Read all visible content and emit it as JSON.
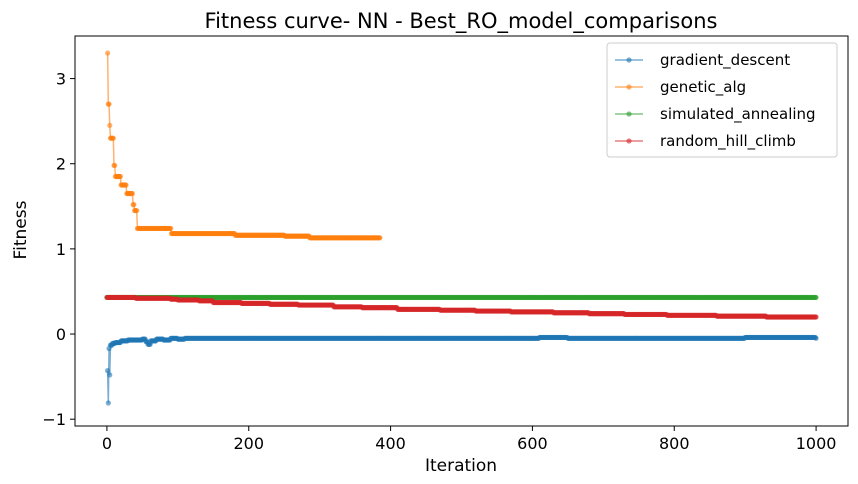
{
  "chart_data": {
    "type": "line",
    "title": "Fitness curve- NN - Best_RO_model_comparisons",
    "xlabel": "Iteration",
    "ylabel": "Fitness",
    "xlim": [
      -45,
      1045
    ],
    "ylim": [
      -1.08,
      3.5
    ],
    "xticks": [
      0,
      200,
      400,
      600,
      800,
      1000
    ],
    "yticks": [
      -1,
      0,
      1,
      2,
      3
    ],
    "xtick_labels": [
      "0",
      "200",
      "400",
      "600",
      "800",
      "1000"
    ],
    "ytick_labels": [
      "−1",
      "0",
      "1",
      "2",
      "3"
    ],
    "grid": false,
    "legend_position": "upper-right",
    "series": [
      {
        "name": "gradient_descent",
        "color": "#1f77b4",
        "points": [
          [
            1,
            -0.43
          ],
          [
            2,
            -0.81
          ],
          [
            3,
            -0.17
          ],
          [
            4,
            -0.48
          ],
          [
            5,
            -0.13
          ],
          [
            8,
            -0.11
          ],
          [
            12,
            -0.1
          ],
          [
            20,
            -0.08
          ],
          [
            30,
            -0.07
          ],
          [
            40,
            -0.07
          ],
          [
            50,
            -0.06
          ],
          [
            55,
            -0.09
          ],
          [
            58,
            -0.12
          ],
          [
            62,
            -0.08
          ],
          [
            70,
            -0.06
          ],
          [
            80,
            -0.07
          ],
          [
            90,
            -0.05
          ],
          [
            100,
            -0.06
          ],
          [
            110,
            -0.05
          ],
          [
            150,
            -0.05
          ],
          [
            300,
            -0.05
          ],
          [
            500,
            -0.05
          ],
          [
            600,
            -0.05
          ],
          [
            610,
            -0.04
          ],
          [
            650,
            -0.05
          ],
          [
            800,
            -0.05
          ],
          [
            900,
            -0.04
          ],
          [
            1000,
            -0.05
          ]
        ]
      },
      {
        "name": "genetic_alg",
        "color": "#ff7f0e",
        "points": [
          [
            1,
            3.3
          ],
          [
            2,
            2.7
          ],
          [
            4,
            2.45
          ],
          [
            5,
            2.3
          ],
          [
            8,
            2.3
          ],
          [
            10,
            1.98
          ],
          [
            12,
            1.85
          ],
          [
            18,
            1.85
          ],
          [
            20,
            1.75
          ],
          [
            25,
            1.75
          ],
          [
            28,
            1.65
          ],
          [
            35,
            1.65
          ],
          [
            37,
            1.52
          ],
          [
            39,
            1.45
          ],
          [
            42,
            1.45
          ],
          [
            43,
            1.24
          ],
          [
            90,
            1.24
          ],
          [
            91,
            1.18
          ],
          [
            180,
            1.18
          ],
          [
            181,
            1.16
          ],
          [
            250,
            1.16
          ],
          [
            251,
            1.15
          ],
          [
            285,
            1.15
          ],
          [
            286,
            1.13
          ],
          [
            385,
            1.13
          ]
        ]
      },
      {
        "name": "simulated_annealing",
        "color": "#2ca02c",
        "points": [
          [
            0,
            0.43
          ],
          [
            1000,
            0.43
          ]
        ]
      },
      {
        "name": "random_hill_climb",
        "color": "#d62728",
        "points": [
          [
            0,
            0.43
          ],
          [
            40,
            0.43
          ],
          [
            41,
            0.42
          ],
          [
            90,
            0.41
          ],
          [
            100,
            0.4
          ],
          [
            130,
            0.39
          ],
          [
            150,
            0.37
          ],
          [
            190,
            0.36
          ],
          [
            230,
            0.35
          ],
          [
            270,
            0.34
          ],
          [
            320,
            0.32
          ],
          [
            360,
            0.31
          ],
          [
            410,
            0.29
          ],
          [
            470,
            0.28
          ],
          [
            520,
            0.27
          ],
          [
            570,
            0.26
          ],
          [
            630,
            0.25
          ],
          [
            680,
            0.24
          ],
          [
            730,
            0.23
          ],
          [
            790,
            0.22
          ],
          [
            860,
            0.21
          ],
          [
            930,
            0.2
          ],
          [
            1000,
            0.2
          ]
        ]
      }
    ]
  }
}
